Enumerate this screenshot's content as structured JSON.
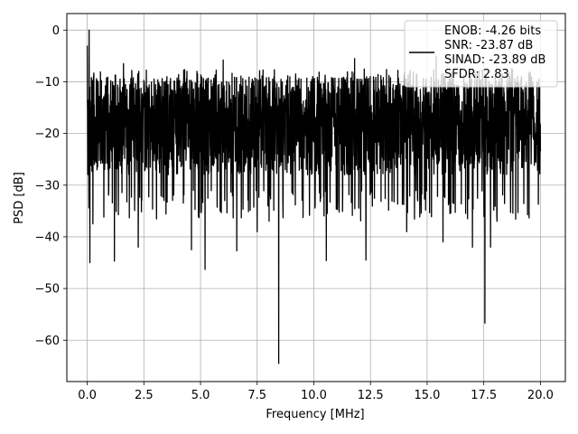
{
  "chart_data": {
    "type": "line",
    "xlabel": "Frequency [MHz]",
    "ylabel": "PSD [dB]",
    "xlim": [
      -0.9,
      21.1
    ],
    "ylim": [
      -68,
      3.2
    ],
    "x_ticks": [
      "0.0",
      "2.5",
      "5.0",
      "7.5",
      "10.0",
      "12.5",
      "15.0",
      "17.5",
      "20.0"
    ],
    "y_ticks": [
      "0",
      "−10",
      "−20",
      "−30",
      "−40",
      "−50",
      "−60"
    ],
    "x_tick_values": [
      0,
      2.5,
      5,
      7.5,
      10,
      12.5,
      15,
      17.5,
      20
    ],
    "y_tick_values": [
      0,
      -10,
      -20,
      -30,
      -40,
      -50,
      -60
    ],
    "grid": true,
    "legend_position": "top-right",
    "series": [
      {
        "name": "ENOB: -4.26 bits\nSNR: -23.87 dB\nSINAD: -23.89 dB\nSFDR: 2.83",
        "color": "#000000",
        "x_range": [
          0,
          20
        ],
        "typical_upper": -9,
        "typical_lower": -28,
        "peaks": [
          {
            "x": 0.0,
            "y": -3
          },
          {
            "x": 0.08,
            "y": 0
          },
          {
            "x": 1.6,
            "y": -6.5
          },
          {
            "x": 6.0,
            "y": -5.8
          },
          {
            "x": 11.8,
            "y": -5.5
          },
          {
            "x": 15.4,
            "y": -5
          }
        ],
        "dips": [
          {
            "x": 0.12,
            "y": -45
          },
          {
            "x": 0.25,
            "y": -37.5
          },
          {
            "x": 1.2,
            "y": -44.7
          },
          {
            "x": 2.25,
            "y": -42
          },
          {
            "x": 4.6,
            "y": -42.5
          },
          {
            "x": 5.2,
            "y": -46.3
          },
          {
            "x": 6.6,
            "y": -42.7
          },
          {
            "x": 7.5,
            "y": -39
          },
          {
            "x": 8.45,
            "y": -64.5
          },
          {
            "x": 10.55,
            "y": -44.6
          },
          {
            "x": 12.3,
            "y": -44.5
          },
          {
            "x": 14.1,
            "y": -39
          },
          {
            "x": 15.7,
            "y": -41
          },
          {
            "x": 17.0,
            "y": -42
          },
          {
            "x": 17.55,
            "y": -56.7
          },
          {
            "x": 17.8,
            "y": -42
          }
        ]
      }
    ]
  },
  "legend": {
    "lines": [
      "ENOB: -4.26 bits",
      "SNR: -23.87 dB",
      "SINAD: -23.89 dB",
      "SFDR: 2.83"
    ]
  }
}
